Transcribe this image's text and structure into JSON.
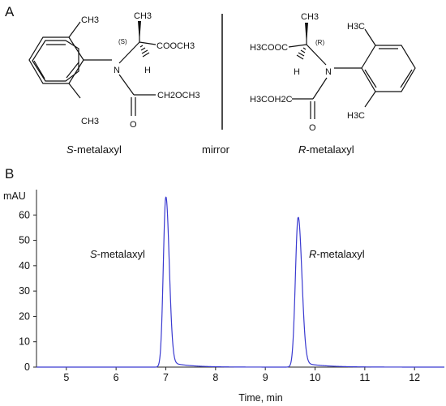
{
  "panels": {
    "a": "A",
    "b": "B"
  },
  "structures": {
    "left": {
      "methyl_top": "CH3",
      "methyl_alpha": "CH3",
      "methyl_bottom": "CH3",
      "stereo": "(S)",
      "ester": "COOCH3",
      "hydrogen": "H",
      "nitrogen": "N",
      "side_chain": "CH2OCH3",
      "oxygen": "O",
      "name_prefix": "S",
      "name_suffix": "-metalaxyl"
    },
    "mirror_label": "mirror",
    "right": {
      "methyl_alpha": "CH3",
      "methyl_top": "H3C",
      "methyl_bottom": "H3C",
      "stereo": "(R)",
      "ester": "H3COOC",
      "hydrogen": "H",
      "nitrogen": "N",
      "side_chain": "H3COH2C",
      "oxygen": "O",
      "name_prefix": "R",
      "name_suffix": "-metalaxyl"
    }
  },
  "chart_data": {
    "type": "line",
    "ylabel": "mAU",
    "xlabel": "Time, min",
    "xlim": [
      4.4,
      12.6
    ],
    "ylim": [
      0,
      70
    ],
    "xticks": [
      5,
      6,
      7,
      8,
      9,
      10,
      11,
      12
    ],
    "yticks": [
      0,
      10,
      20,
      30,
      40,
      50,
      60
    ],
    "line_color": "#3a3ad0",
    "peaks": [
      {
        "label_prefix": "S",
        "label_suffix": "-metalaxyl",
        "time": 7.0,
        "height": 67,
        "width": 0.05,
        "tail": 0.09
      },
      {
        "label_prefix": "R",
        "label_suffix": "-metalaxyl",
        "time": 9.66,
        "height": 59,
        "width": 0.055,
        "tail": 0.1
      }
    ],
    "baseline": 0
  }
}
